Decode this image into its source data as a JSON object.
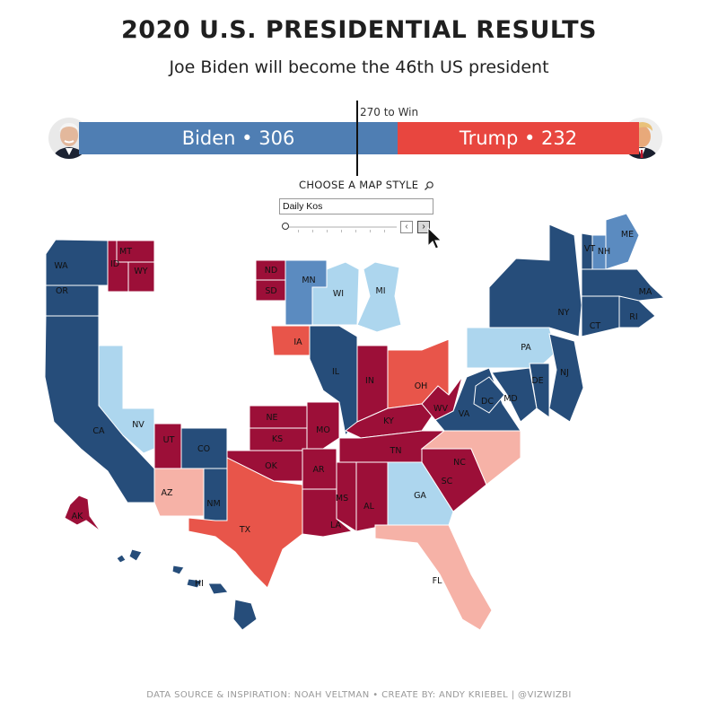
{
  "title": "2020 U.S. PRESIDENTIAL RESULTS",
  "subtitle": "Joe Biden will become the 46th US president",
  "results": {
    "biden_label": "Biden • 306",
    "trump_label": "Trump • 232",
    "biden_votes": 306,
    "trump_votes": 232,
    "win_label": "270 to Win",
    "biden_color": "#4f7eb3",
    "trump_color": "#e8463f"
  },
  "controls": {
    "label": "CHOOSE A MAP STYLE",
    "selected_style": "Daily Kos"
  },
  "legend_colors": {
    "safe_d": "#264d7a",
    "likely_d": "#5b8bc0",
    "lean_d": "#add6ee",
    "safe_r": "#9c0f38",
    "likely_r": "#e8554a",
    "lean_r": "#f6b2a7"
  },
  "states": {
    "WA": "WA",
    "OR": "OR",
    "CA": "CA",
    "NV": "NV",
    "ID": "ID",
    "MT": "MT",
    "WY": "WY",
    "UT": "UT",
    "CO": "CO",
    "AZ": "AZ",
    "NM": "NM",
    "ND": "ND",
    "SD": "SD",
    "NE": "NE",
    "KS": "KS",
    "OK": "OK",
    "TX": "TX",
    "MN": "MN",
    "IA": "IA",
    "MO": "MO",
    "AR": "AR",
    "LA": "LA",
    "WI": "WI",
    "IL": "IL",
    "MI": "MI",
    "IN": "IN",
    "OH": "OH",
    "KY": "KY",
    "TN": "TN",
    "MS": "MS",
    "AL": "AL",
    "GA": "GA",
    "FL": "FL",
    "SC": "SC",
    "NC": "NC",
    "VA": "VA",
    "WV": "WV",
    "PA": "PA",
    "NY": "NY",
    "VT": "VT",
    "NH": "NH",
    "ME": "ME",
    "MA": "MA",
    "CT": "CT",
    "RI": "RI",
    "NJ": "NJ",
    "DE": "DE",
    "MD": "MD",
    "DC": "DC",
    "AK": "AK",
    "HI": "HI"
  },
  "footer": "DATA SOURCE & INSPIRATION: NOAH VELTMAN  •  CREATE BY: ANDY KRIEBEL | @VIZWIZBI"
}
